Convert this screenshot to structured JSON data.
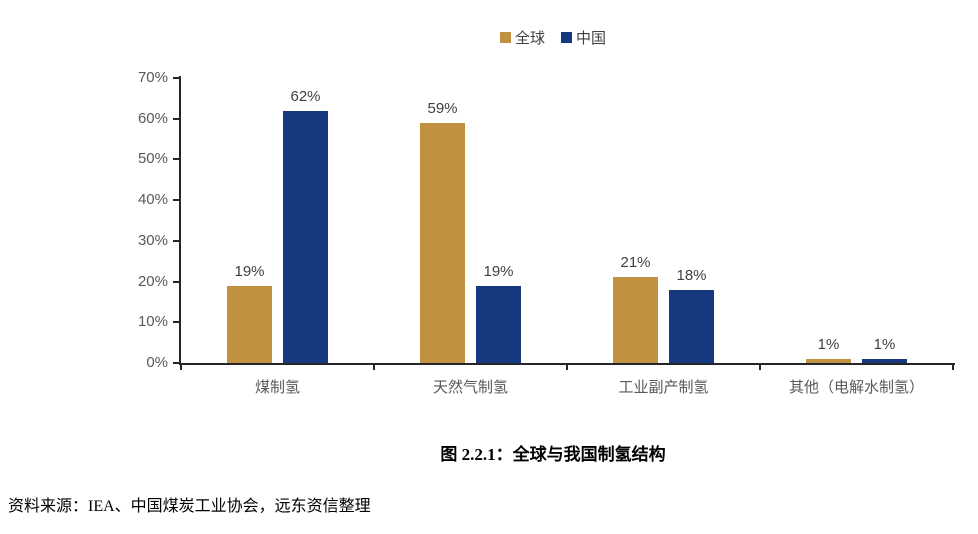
{
  "colors": {
    "global_series": "#BF9140",
    "china_series": "#15387E",
    "axis_line": "#262626",
    "tick_label": "#595959",
    "value_label": "#404040"
  },
  "legend": {
    "items": [
      {
        "label": "全球",
        "color": "#BF9140"
      },
      {
        "label": "中国",
        "color": "#15387E"
      }
    ]
  },
  "chart_data": {
    "type": "bar",
    "title": "图 2.2.1：全球与我国制氢结构",
    "categories": [
      "煤制氢",
      "天然气制氢",
      "工业副产制氢",
      "其他（电解水制氢）"
    ],
    "series": [
      {
        "name": "全球",
        "color": "#BF9140",
        "values": [
          19,
          59,
          21,
          1
        ]
      },
      {
        "name": "中国",
        "color": "#15387E",
        "values": [
          62,
          19,
          18,
          1
        ]
      }
    ],
    "xlabel": "",
    "ylabel": "",
    "ylim": [
      0,
      70
    ],
    "ytick_step": 10,
    "ytick_labels": [
      "0%",
      "10%",
      "20%",
      "30%",
      "40%",
      "50%",
      "60%",
      "70%"
    ],
    "value_label_suffix": "%",
    "grid": false,
    "legend_position": "top-center"
  },
  "caption": "图 2.2.1：全球与我国制氢结构",
  "source": "资料来源：IEA、中国煤炭工业协会，远东资信整理"
}
